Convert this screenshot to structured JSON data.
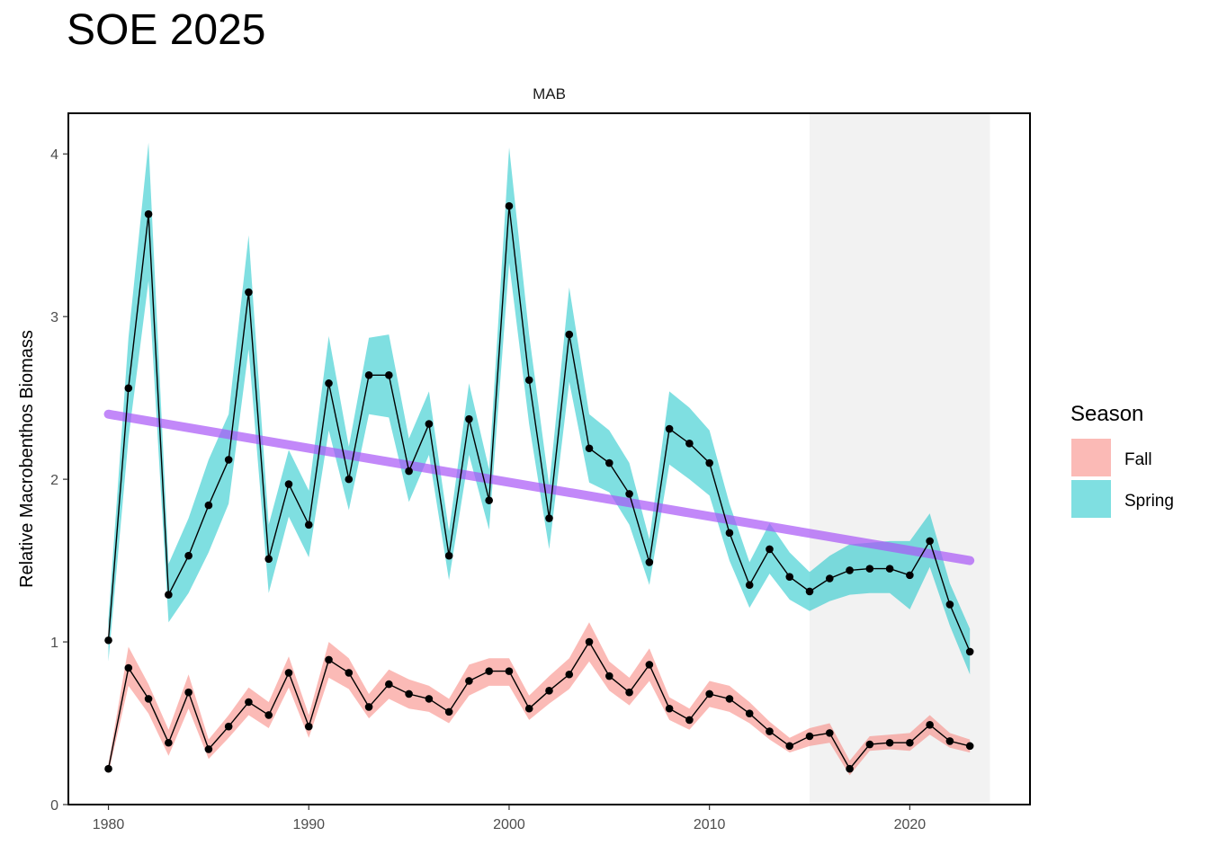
{
  "title": "SOE 2025",
  "chart_data": {
    "type": "line",
    "facet_label": "MAB",
    "ylabel": "Relative Macrobenthos Biomass",
    "xlabel": "",
    "xlim": [
      1978,
      2026
    ],
    "ylim": [
      0,
      4.25
    ],
    "x_ticks": [
      1980,
      1990,
      2000,
      2010,
      2020
    ],
    "y_ticks": [
      0,
      1,
      2,
      3,
      4
    ],
    "grid": false,
    "highlight_region": {
      "x_start": 2015,
      "x_end": 2024,
      "color": "#f2f2f2"
    },
    "legend": {
      "title": "Season",
      "position": "right",
      "entries": [
        {
          "label": "Fall",
          "color": "#f8766d"
        },
        {
          "label": "Spring",
          "color": "#00bfc4"
        }
      ]
    },
    "trend_line": {
      "color": "#a855f7",
      "x": [
        1980,
        2023
      ],
      "y": [
        2.4,
        1.5
      ]
    },
    "series": [
      {
        "name": "Spring",
        "color": "#00bfc4",
        "x": [
          1980,
          1981,
          1982,
          1983,
          1984,
          1985,
          1986,
          1987,
          1988,
          1989,
          1990,
          1991,
          1992,
          1993,
          1994,
          1995,
          1996,
          1997,
          1998,
          1999,
          2000,
          2001,
          2002,
          2003,
          2004,
          2005,
          2006,
          2007,
          2008,
          2009,
          2010,
          2011,
          2012,
          2013,
          2014,
          2015,
          2016,
          2017,
          2018,
          2019,
          2020,
          2021,
          2022,
          2023
        ],
        "values": [
          1.01,
          2.56,
          3.63,
          1.29,
          1.53,
          1.84,
          2.12,
          3.15,
          1.51,
          1.97,
          1.72,
          2.59,
          2.0,
          2.64,
          2.64,
          2.05,
          2.34,
          1.53,
          2.37,
          1.87,
          3.68,
          2.61,
          1.76,
          2.89,
          2.19,
          2.1,
          1.91,
          1.49,
          2.31,
          2.22,
          2.1,
          1.67,
          1.35,
          1.57,
          1.4,
          1.31,
          1.39,
          1.44,
          1.45,
          1.45,
          1.41,
          1.62,
          1.23,
          0.94
        ],
        "lower": [
          0.88,
          2.25,
          3.22,
          1.12,
          1.3,
          1.55,
          1.85,
          2.8,
          1.3,
          1.77,
          1.52,
          2.3,
          1.81,
          2.4,
          2.38,
          1.86,
          2.15,
          1.38,
          2.15,
          1.69,
          3.33,
          2.34,
          1.57,
          2.6,
          1.98,
          1.92,
          1.72,
          1.35,
          2.09,
          2.0,
          1.9,
          1.5,
          1.21,
          1.42,
          1.26,
          1.19,
          1.25,
          1.29,
          1.3,
          1.3,
          1.2,
          1.46,
          1.1,
          0.8
        ],
        "upper": [
          1.14,
          2.87,
          4.07,
          1.48,
          1.76,
          2.12,
          2.4,
          3.5,
          1.72,
          2.18,
          1.93,
          2.88,
          2.2,
          2.87,
          2.89,
          2.25,
          2.54,
          1.68,
          2.59,
          2.06,
          4.04,
          2.89,
          1.96,
          3.18,
          2.4,
          2.3,
          2.1,
          1.63,
          2.54,
          2.44,
          2.3,
          1.85,
          1.49,
          1.73,
          1.55,
          1.43,
          1.53,
          1.6,
          1.61,
          1.62,
          1.62,
          1.79,
          1.36,
          1.08
        ]
      },
      {
        "name": "Fall",
        "color": "#f8766d",
        "x": [
          1980,
          1981,
          1982,
          1983,
          1984,
          1985,
          1986,
          1987,
          1988,
          1989,
          1990,
          1991,
          1992,
          1993,
          1994,
          1995,
          1996,
          1997,
          1998,
          1999,
          2000,
          2001,
          2002,
          2003,
          2004,
          2005,
          2006,
          2007,
          2008,
          2009,
          2010,
          2011,
          2012,
          2013,
          2014,
          2015,
          2016,
          2017,
          2018,
          2019,
          2020,
          2021,
          2022,
          2023
        ],
        "values": [
          0.22,
          0.84,
          0.65,
          0.38,
          0.69,
          0.34,
          0.48,
          0.63,
          0.55,
          0.81,
          0.48,
          0.89,
          0.81,
          0.6,
          0.74,
          0.68,
          0.65,
          0.57,
          0.76,
          0.82,
          0.82,
          0.59,
          0.7,
          0.8,
          1.0,
          0.79,
          0.69,
          0.86,
          0.59,
          0.52,
          0.68,
          0.65,
          0.56,
          0.45,
          0.36,
          0.42,
          0.44,
          0.22,
          0.37,
          0.38,
          0.38,
          0.49,
          0.39,
          0.36
        ],
        "lower": [
          0.19,
          0.73,
          0.56,
          0.3,
          0.59,
          0.28,
          0.41,
          0.55,
          0.47,
          0.72,
          0.41,
          0.78,
          0.71,
          0.53,
          0.65,
          0.59,
          0.57,
          0.5,
          0.67,
          0.73,
          0.73,
          0.52,
          0.62,
          0.71,
          0.88,
          0.7,
          0.61,
          0.76,
          0.52,
          0.46,
          0.6,
          0.57,
          0.5,
          0.4,
          0.32,
          0.36,
          0.38,
          0.18,
          0.33,
          0.34,
          0.33,
          0.43,
          0.35,
          0.32
        ],
        "upper": [
          0.25,
          0.97,
          0.74,
          0.46,
          0.8,
          0.4,
          0.55,
          0.72,
          0.63,
          0.91,
          0.55,
          1.0,
          0.9,
          0.68,
          0.83,
          0.77,
          0.73,
          0.65,
          0.86,
          0.9,
          0.9,
          0.67,
          0.79,
          0.9,
          1.12,
          0.88,
          0.78,
          0.96,
          0.66,
          0.59,
          0.76,
          0.73,
          0.63,
          0.51,
          0.41,
          0.47,
          0.5,
          0.27,
          0.42,
          0.43,
          0.44,
          0.55,
          0.44,
          0.4
        ]
      }
    ]
  }
}
